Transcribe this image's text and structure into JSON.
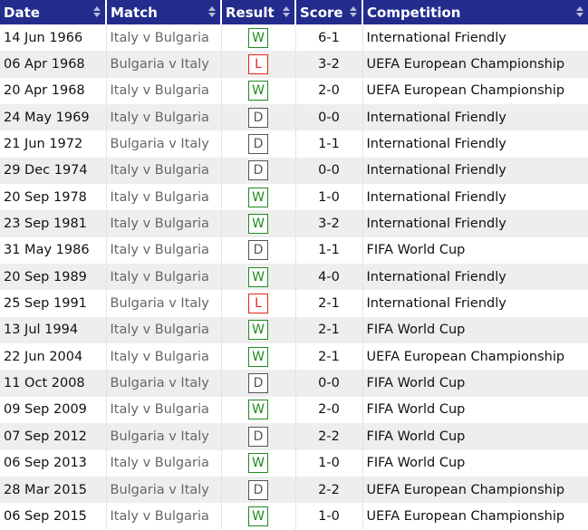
{
  "columns": [
    "Date",
    "Match",
    "Result",
    "Score",
    "Competition"
  ],
  "colors": {
    "header_bg": "#232c8c",
    "win": "#1f8a1f",
    "loss": "#e8221b",
    "draw": "#555555",
    "alt_row": "#eeeeee"
  },
  "rows": [
    {
      "date": "14 Jun 1966",
      "match": "Italy v Bulgaria",
      "result": "W",
      "score": "6-1",
      "competition": "International Friendly"
    },
    {
      "date": "06 Apr 1968",
      "match": "Bulgaria v Italy",
      "result": "L",
      "score": "3-2",
      "competition": "UEFA European Championship"
    },
    {
      "date": "20 Apr 1968",
      "match": "Italy v Bulgaria",
      "result": "W",
      "score": "2-0",
      "competition": "UEFA European Championship"
    },
    {
      "date": "24 May 1969",
      "match": "Italy v Bulgaria",
      "result": "D",
      "score": "0-0",
      "competition": "International Friendly"
    },
    {
      "date": "21 Jun 1972",
      "match": "Bulgaria v Italy",
      "result": "D",
      "score": "1-1",
      "competition": "International Friendly"
    },
    {
      "date": "29 Dec 1974",
      "match": "Italy v Bulgaria",
      "result": "D",
      "score": "0-0",
      "competition": "International Friendly"
    },
    {
      "date": "20 Sep 1978",
      "match": "Italy v Bulgaria",
      "result": "W",
      "score": "1-0",
      "competition": "International Friendly"
    },
    {
      "date": "23 Sep 1981",
      "match": "Italy v Bulgaria",
      "result": "W",
      "score": "3-2",
      "competition": "International Friendly"
    },
    {
      "date": "31 May 1986",
      "match": "Italy v Bulgaria",
      "result": "D",
      "score": "1-1",
      "competition": "FIFA World Cup"
    },
    {
      "date": "20 Sep 1989",
      "match": "Italy v Bulgaria",
      "result": "W",
      "score": "4-0",
      "competition": "International Friendly"
    },
    {
      "date": "25 Sep 1991",
      "match": "Bulgaria v Italy",
      "result": "L",
      "score": "2-1",
      "competition": "International Friendly"
    },
    {
      "date": "13 Jul 1994",
      "match": "Italy v Bulgaria",
      "result": "W",
      "score": "2-1",
      "competition": "FIFA World Cup"
    },
    {
      "date": "22 Jun 2004",
      "match": "Italy v Bulgaria",
      "result": "W",
      "score": "2-1",
      "competition": "UEFA European Championship"
    },
    {
      "date": "11 Oct 2008",
      "match": "Bulgaria v Italy",
      "result": "D",
      "score": "0-0",
      "competition": "FIFA World Cup"
    },
    {
      "date": "09 Sep 2009",
      "match": "Italy v Bulgaria",
      "result": "W",
      "score": "2-0",
      "competition": "FIFA World Cup"
    },
    {
      "date": "07 Sep 2012",
      "match": "Bulgaria v Italy",
      "result": "D",
      "score": "2-2",
      "competition": "FIFA World Cup"
    },
    {
      "date": "06 Sep 2013",
      "match": "Italy v Bulgaria",
      "result": "W",
      "score": "1-0",
      "competition": "FIFA World Cup"
    },
    {
      "date": "28 Mar 2015",
      "match": "Bulgaria v Italy",
      "result": "D",
      "score": "2-2",
      "competition": "UEFA European Championship"
    },
    {
      "date": "06 Sep 2015",
      "match": "Italy v Bulgaria",
      "result": "W",
      "score": "1-0",
      "competition": "UEFA European Championship"
    }
  ]
}
